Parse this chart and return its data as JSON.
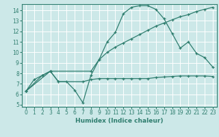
{
  "xlabel": "Humidex (Indice chaleur)",
  "bg_color": "#cce8e8",
  "line_color": "#2e7d6e",
  "grid_color": "#ffffff",
  "xlim": [
    -0.5,
    23.5
  ],
  "ylim": [
    4.8,
    14.6
  ],
  "xticks": [
    0,
    1,
    2,
    3,
    4,
    5,
    6,
    7,
    8,
    9,
    10,
    11,
    12,
    13,
    14,
    15,
    16,
    17,
    18,
    19,
    20,
    21,
    22,
    23
  ],
  "yticks": [
    5,
    6,
    7,
    8,
    9,
    10,
    11,
    12,
    13,
    14
  ],
  "curve1_x": [
    0,
    1,
    2,
    3,
    4,
    5,
    6,
    7,
    8,
    9,
    10,
    11,
    12,
    13,
    14,
    15,
    16,
    17,
    18,
    19,
    20,
    21,
    22,
    23
  ],
  "curve1_y": [
    6.3,
    7.4,
    7.8,
    8.2,
    7.2,
    7.2,
    6.4,
    5.2,
    7.8,
    9.3,
    11.0,
    11.9,
    13.7,
    14.3,
    14.45,
    14.45,
    14.1,
    13.2,
    11.8,
    10.4,
    11.0,
    9.9,
    9.5,
    8.6
  ],
  "curve2_x": [
    0,
    2,
    3,
    8,
    9,
    10,
    11,
    12,
    13,
    14,
    15,
    16,
    17,
    18,
    19,
    20,
    21,
    22,
    23
  ],
  "curve2_y": [
    6.3,
    7.8,
    8.2,
    8.2,
    9.3,
    10.0,
    10.5,
    10.9,
    11.3,
    11.7,
    12.1,
    12.5,
    12.8,
    13.1,
    13.4,
    13.6,
    13.9,
    14.1,
    14.3
  ],
  "curve3_x": [
    0,
    3,
    4,
    7,
    8,
    9,
    10,
    11,
    12,
    13,
    14,
    15,
    16,
    17,
    18,
    19,
    20,
    21,
    22,
    23
  ],
  "curve3_y": [
    6.3,
    8.2,
    7.2,
    7.2,
    7.4,
    7.5,
    7.5,
    7.5,
    7.5,
    7.5,
    7.5,
    7.5,
    7.6,
    7.65,
    7.7,
    7.75,
    7.75,
    7.75,
    7.75,
    7.7
  ]
}
